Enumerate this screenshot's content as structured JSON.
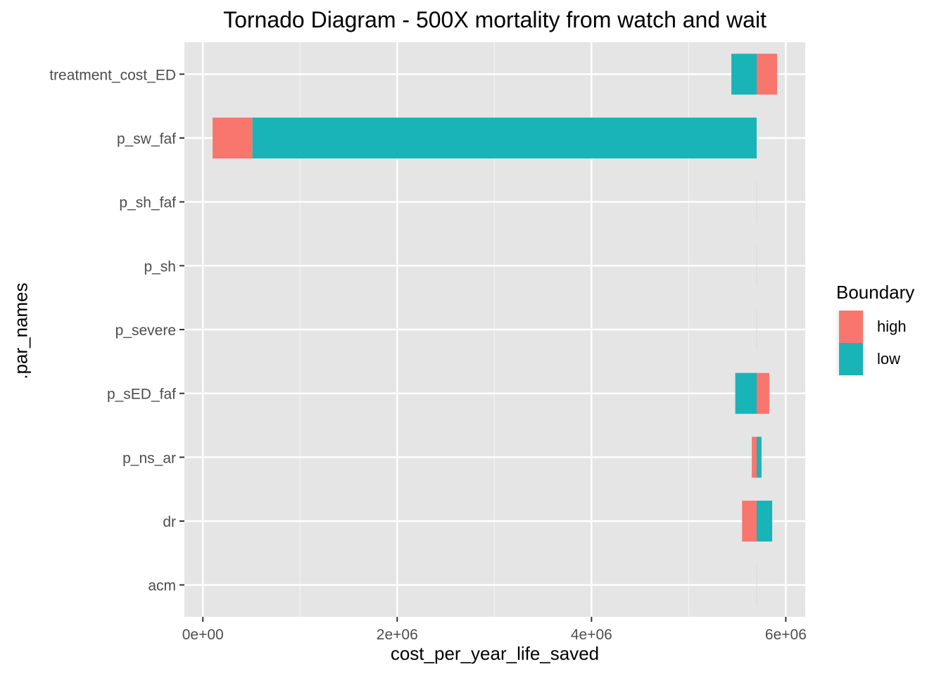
{
  "chart_data": {
    "type": "bar",
    "orientation": "horizontal",
    "title": "Tornado Diagram - 500X mortality from watch and wait",
    "xlabel": "cost_per_year_life_saved",
    "ylabel": ".par_names",
    "xlim": [
      -190000,
      6200000
    ],
    "xticks": [
      0,
      2000000,
      4000000,
      6000000
    ],
    "xtick_labels": [
      "0e+00",
      "2e+06",
      "4e+06",
      "6e+06"
    ],
    "base_value": 5700000,
    "categories": [
      "treatment_cost_ED",
      "p_sw_faf",
      "p_sh_faf",
      "p_sh",
      "p_severe",
      "p_sED_faf",
      "p_ns_ar",
      "dr",
      "acm"
    ],
    "series": [
      {
        "name": "high",
        "color": "#F8766D",
        "bars": [
          [
            5700000,
            5910000
          ],
          [
            100000,
            510000
          ],
          [
            5700000,
            5700000
          ],
          [
            5700000,
            5700000
          ],
          [
            5700000,
            5700000
          ],
          [
            5700000,
            5830000
          ],
          [
            5650000,
            5700000
          ],
          [
            5550000,
            5700000
          ],
          [
            5700000,
            5700000
          ]
        ]
      },
      {
        "name": "low",
        "color": "#19B4B8",
        "bars": [
          [
            5440000,
            5700000
          ],
          [
            510000,
            5700000
          ],
          [
            5700000,
            5700000
          ],
          [
            5700000,
            5700000
          ],
          [
            5700000,
            5700000
          ],
          [
            5480000,
            5700000
          ],
          [
            5700000,
            5750000
          ],
          [
            5700000,
            5860000
          ],
          [
            5700000,
            5700000
          ]
        ]
      }
    ],
    "grid": true,
    "legend_title": "Boundary",
    "legend_position": "right"
  }
}
